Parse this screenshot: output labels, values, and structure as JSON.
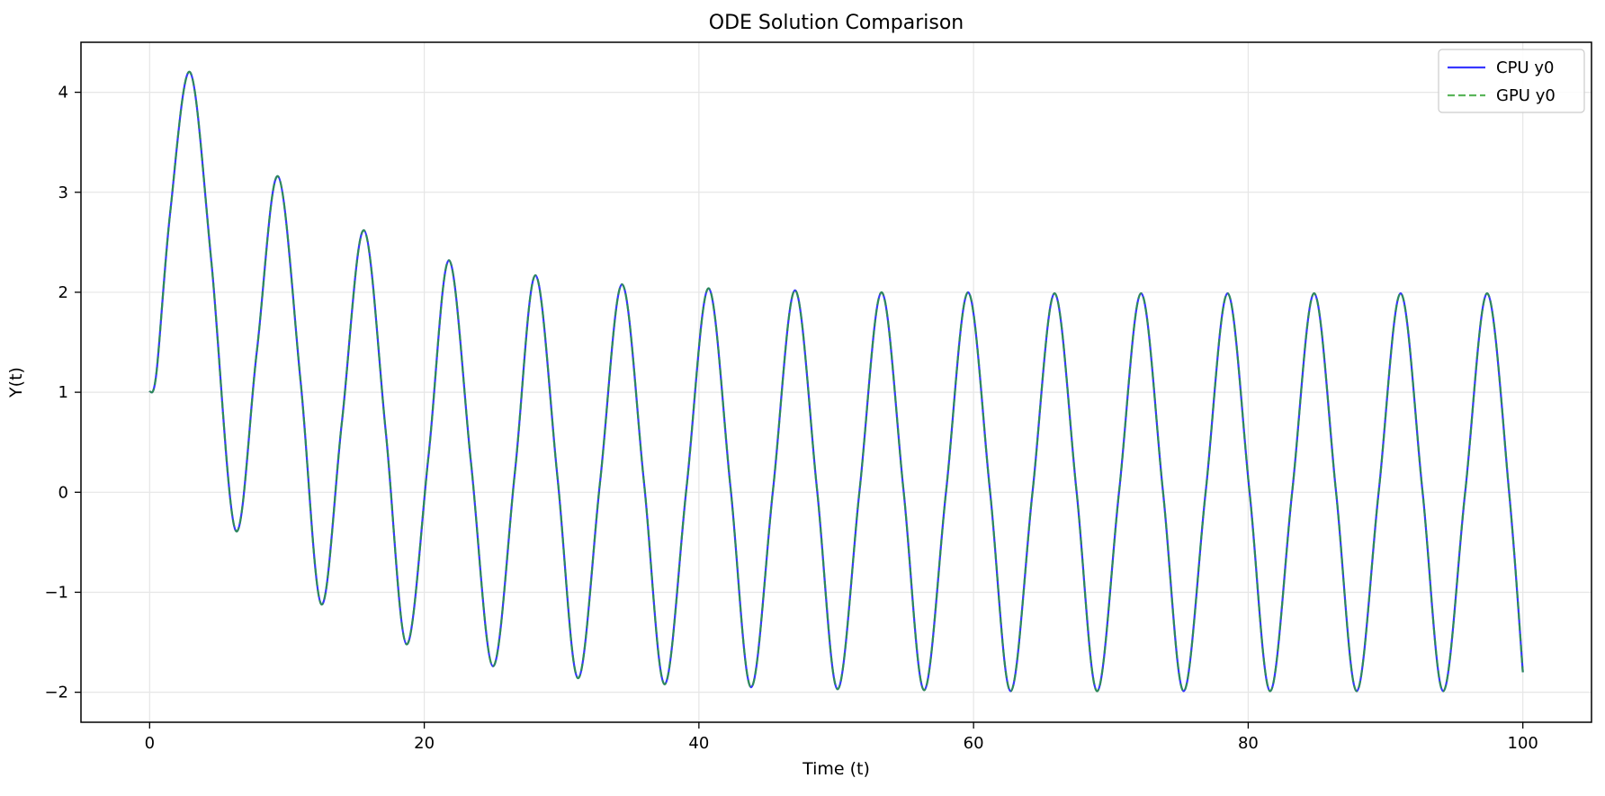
{
  "chart_data": {
    "type": "line",
    "title": "ODE Solution Comparison",
    "xlabel": "Time (t)",
    "ylabel": "Y(t)",
    "xlim": [
      -5,
      105
    ],
    "ylim": [
      -2.3,
      4.5
    ],
    "x_ticks": [
      0,
      20,
      40,
      60,
      80,
      100
    ],
    "y_ticks": [
      -2,
      -1,
      0,
      1,
      2,
      3,
      4
    ],
    "y_tick_labels": [
      "−2",
      "−1",
      "0",
      "1",
      "2",
      "3",
      "4"
    ],
    "grid": true,
    "legend_position": "top-right",
    "series": [
      {
        "name": "CPU y0",
        "color": "#0000ff",
        "style": "solid",
        "x": [
          0,
          0.5,
          1.5,
          2.95,
          4.5,
          6.25,
          7.8,
          9.35,
          11,
          12.5,
          14,
          15.6,
          17.2,
          18.7,
          20.3,
          21.8,
          23.4,
          25,
          26.6,
          28.1,
          29.7,
          31.2,
          32.8,
          34.4,
          36,
          37.5,
          39.1,
          40.7,
          42.3,
          43.8,
          45.4,
          47,
          48.6,
          50.1,
          51.7,
          53.3,
          54.9,
          56.4,
          58,
          59.6,
          61.2,
          62.7,
          64.3,
          65.9,
          67.5,
          69,
          70.6,
          72.2,
          73.8,
          75.3,
          76.9,
          78.5,
          80.1,
          81.6,
          83.2,
          84.8,
          86.4,
          87.9,
          89.5,
          91.1,
          92.7,
          94.2,
          95.8,
          97.4,
          99,
          100
        ],
        "y": [
          1.0,
          1.2,
          2.8,
          4.2,
          2.3,
          -0.38,
          1.4,
          3.16,
          1.1,
          -1.12,
          0.7,
          2.62,
          0.6,
          -1.52,
          0.35,
          2.32,
          0.3,
          -1.74,
          0.2,
          2.17,
          0.15,
          -1.86,
          0.1,
          2.08,
          0.1,
          -1.92,
          0.05,
          2.04,
          0.05,
          -1.95,
          0.03,
          2.02,
          0.03,
          -1.97,
          0.02,
          2.0,
          0.02,
          -1.98,
          0.01,
          2.0,
          0.01,
          -1.99,
          0.01,
          1.99,
          0.01,
          -1.99,
          0.01,
          1.99,
          0.0,
          -1.99,
          0.0,
          1.99,
          0.0,
          -1.99,
          0.0,
          1.99,
          0.0,
          -1.99,
          0.0,
          1.99,
          0.0,
          -1.99,
          0.0,
          1.99,
          0.0,
          -1.8
        ]
      },
      {
        "name": "GPU y0",
        "color": "#2ca02c",
        "style": "dashed",
        "x": [
          0,
          0.5,
          1.5,
          2.95,
          4.5,
          6.25,
          7.8,
          9.35,
          11,
          12.5,
          14,
          15.6,
          17.2,
          18.7,
          20.3,
          21.8,
          23.4,
          25,
          26.6,
          28.1,
          29.7,
          31.2,
          32.8,
          34.4,
          36,
          37.5,
          39.1,
          40.7,
          42.3,
          43.8,
          45.4,
          47,
          48.6,
          50.1,
          51.7,
          53.3,
          54.9,
          56.4,
          58,
          59.6,
          61.2,
          62.7,
          64.3,
          65.9,
          67.5,
          69,
          70.6,
          72.2,
          73.8,
          75.3,
          76.9,
          78.5,
          80.1,
          81.6,
          83.2,
          84.8,
          86.4,
          87.9,
          89.5,
          91.1,
          92.7,
          94.2,
          95.8,
          97.4,
          99,
          100
        ],
        "y": [
          1.0,
          1.2,
          2.8,
          4.2,
          2.3,
          -0.38,
          1.4,
          3.16,
          1.1,
          -1.12,
          0.7,
          2.62,
          0.6,
          -1.52,
          0.35,
          2.32,
          0.3,
          -1.74,
          0.2,
          2.17,
          0.15,
          -1.86,
          0.1,
          2.08,
          0.1,
          -1.92,
          0.05,
          2.04,
          0.05,
          -1.95,
          0.03,
          2.02,
          0.03,
          -1.97,
          0.02,
          2.0,
          0.02,
          -1.98,
          0.01,
          2.0,
          0.01,
          -1.99,
          0.01,
          1.99,
          0.01,
          -1.99,
          0.01,
          1.99,
          0.0,
          -1.99,
          0.0,
          1.99,
          0.0,
          -1.99,
          0.0,
          1.99,
          0.0,
          -1.99,
          0.0,
          1.99,
          0.0,
          -1.99,
          0.0,
          1.99,
          0.0,
          -1.8
        ]
      }
    ]
  }
}
